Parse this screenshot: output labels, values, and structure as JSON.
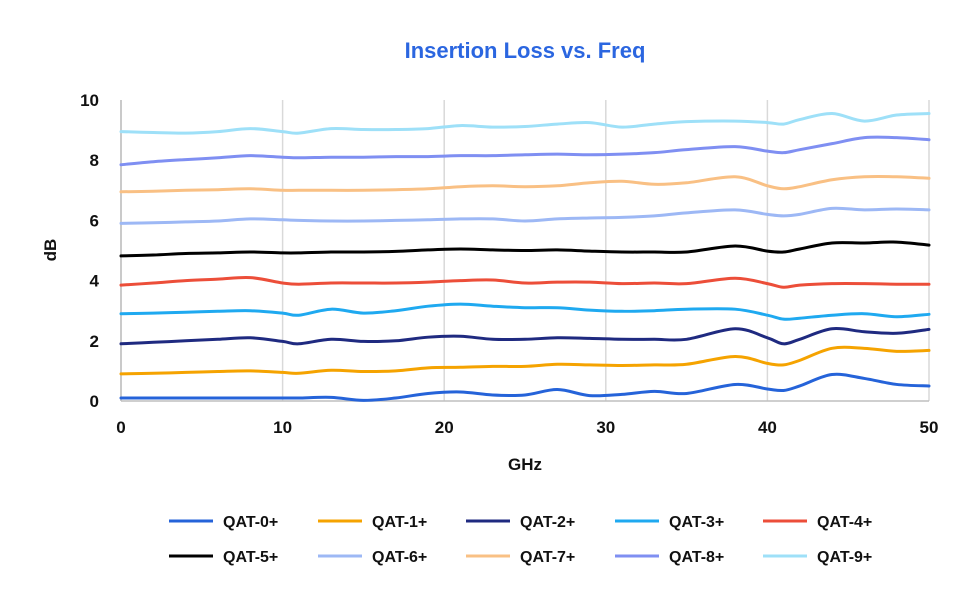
{
  "chart_data": {
    "type": "line",
    "title": "Insertion Loss vs. Freq",
    "xlabel": "GHz",
    "ylabel": "dB",
    "xlim": [
      0,
      50
    ],
    "ylim": [
      0,
      10
    ],
    "xticks": [
      0,
      10,
      20,
      30,
      40,
      50
    ],
    "yticks": [
      0,
      2,
      4,
      6,
      8,
      10
    ],
    "grid": "vertical",
    "legend_position": "bottom",
    "colors": {
      "title": "#2b66e0"
    },
    "x": [
      0,
      2,
      4,
      6,
      8,
      10,
      11,
      13,
      15,
      17,
      19,
      21,
      23,
      25,
      27,
      29,
      31,
      33,
      35,
      38,
      40,
      41,
      42,
      44,
      46,
      48,
      50
    ],
    "series": [
      {
        "name": "QAT-0+",
        "color": "#2563d9",
        "values": [
          0.1,
          0.1,
          0.1,
          0.1,
          0.1,
          0.1,
          0.1,
          0.12,
          0.02,
          0.1,
          0.25,
          0.3,
          0.2,
          0.2,
          0.38,
          0.18,
          0.22,
          0.32,
          0.25,
          0.55,
          0.4,
          0.35,
          0.5,
          0.88,
          0.75,
          0.55,
          0.5
        ]
      },
      {
        "name": "QAT-1+",
        "color": "#f5a300",
        "values": [
          0.9,
          0.92,
          0.95,
          0.98,
          1.0,
          0.95,
          0.92,
          1.02,
          0.98,
          1.0,
          1.1,
          1.12,
          1.15,
          1.15,
          1.22,
          1.2,
          1.18,
          1.2,
          1.22,
          1.48,
          1.25,
          1.2,
          1.35,
          1.75,
          1.75,
          1.65,
          1.68
        ]
      },
      {
        "name": "QAT-2+",
        "color": "#1f2a80",
        "values": [
          1.9,
          1.95,
          2.0,
          2.05,
          2.1,
          1.98,
          1.9,
          2.05,
          1.98,
          2.0,
          2.12,
          2.15,
          2.05,
          2.05,
          2.1,
          2.08,
          2.05,
          2.05,
          2.05,
          2.4,
          2.1,
          1.9,
          2.05,
          2.4,
          2.3,
          2.25,
          2.38
        ]
      },
      {
        "name": "QAT-3+",
        "color": "#1fa9f0",
        "values": [
          2.9,
          2.92,
          2.95,
          2.98,
          3.0,
          2.92,
          2.85,
          3.05,
          2.92,
          3.0,
          3.15,
          3.22,
          3.15,
          3.1,
          3.1,
          3.02,
          2.98,
          3.0,
          3.05,
          3.05,
          2.85,
          2.72,
          2.75,
          2.85,
          2.9,
          2.8,
          2.88
        ]
      },
      {
        "name": "QAT-4+",
        "color": "#ec4e39",
        "values": [
          3.85,
          3.92,
          4.0,
          4.05,
          4.1,
          3.92,
          3.88,
          3.92,
          3.92,
          3.92,
          3.95,
          4.0,
          4.02,
          3.92,
          3.95,
          3.95,
          3.9,
          3.92,
          3.9,
          4.08,
          3.9,
          3.78,
          3.85,
          3.9,
          3.9,
          3.88,
          3.88
        ]
      },
      {
        "name": "QAT-5+",
        "color": "#000000",
        "values": [
          4.82,
          4.85,
          4.9,
          4.92,
          4.95,
          4.92,
          4.92,
          4.95,
          4.95,
          4.97,
          5.02,
          5.05,
          5.02,
          5.0,
          5.02,
          4.98,
          4.95,
          4.95,
          4.95,
          5.15,
          4.98,
          4.95,
          5.05,
          5.25,
          5.25,
          5.28,
          5.18
        ]
      },
      {
        "name": "QAT-6+",
        "color": "#9db8f5",
        "values": [
          5.9,
          5.92,
          5.95,
          5.98,
          6.05,
          6.02,
          6.0,
          5.98,
          5.98,
          6.0,
          6.02,
          6.05,
          6.05,
          5.98,
          6.05,
          6.08,
          6.1,
          6.15,
          6.25,
          6.35,
          6.2,
          6.15,
          6.2,
          6.4,
          6.35,
          6.38,
          6.35
        ]
      },
      {
        "name": "QAT-7+",
        "color": "#f9c084",
        "values": [
          6.95,
          6.97,
          7.0,
          7.02,
          7.05,
          7.0,
          7.0,
          7.0,
          7.0,
          7.02,
          7.05,
          7.12,
          7.15,
          7.12,
          7.15,
          7.25,
          7.3,
          7.2,
          7.25,
          7.45,
          7.15,
          7.05,
          7.12,
          7.35,
          7.45,
          7.45,
          7.4
        ]
      },
      {
        "name": "QAT-8+",
        "color": "#7f8ff2",
        "values": [
          7.85,
          7.95,
          8.02,
          8.08,
          8.15,
          8.1,
          8.08,
          8.1,
          8.1,
          8.12,
          8.12,
          8.15,
          8.15,
          8.18,
          8.2,
          8.18,
          8.2,
          8.25,
          8.35,
          8.45,
          8.3,
          8.25,
          8.35,
          8.55,
          8.75,
          8.75,
          8.68
        ]
      },
      {
        "name": "QAT-9+",
        "color": "#9ee0f8",
        "values": [
          8.95,
          8.92,
          8.9,
          8.95,
          9.05,
          8.95,
          8.9,
          9.05,
          9.02,
          9.02,
          9.05,
          9.15,
          9.1,
          9.12,
          9.2,
          9.25,
          9.1,
          9.2,
          9.28,
          9.3,
          9.25,
          9.2,
          9.35,
          9.55,
          9.3,
          9.5,
          9.55
        ]
      }
    ]
  }
}
